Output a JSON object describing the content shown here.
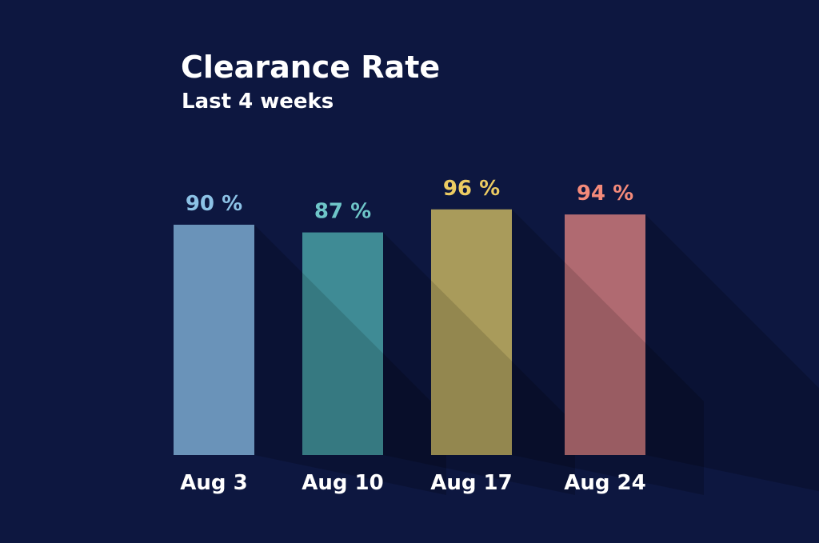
{
  "chart_data": {
    "type": "bar",
    "title": "Clearance Rate",
    "subtitle": "Last 4 weeks",
    "categories": [
      "Aug 3",
      "Aug 10",
      "Aug 17",
      "Aug 24"
    ],
    "values": [
      90,
      87,
      96,
      94
    ],
    "data_labels": [
      "90 %",
      "87 %",
      "96 %",
      "94 %"
    ],
    "value_unit": "%",
    "ylim": [
      0,
      100
    ],
    "grid": false,
    "bar_colors": [
      "#6a93b9",
      "#3f8b95",
      "#a99b5b",
      "#b06a71"
    ],
    "label_colors": [
      "#8cc2e6",
      "#6ec5c8",
      "#eccb62",
      "#f48a7a"
    ],
    "category_label_color": "#ffffff",
    "background": "#0d1740"
  }
}
